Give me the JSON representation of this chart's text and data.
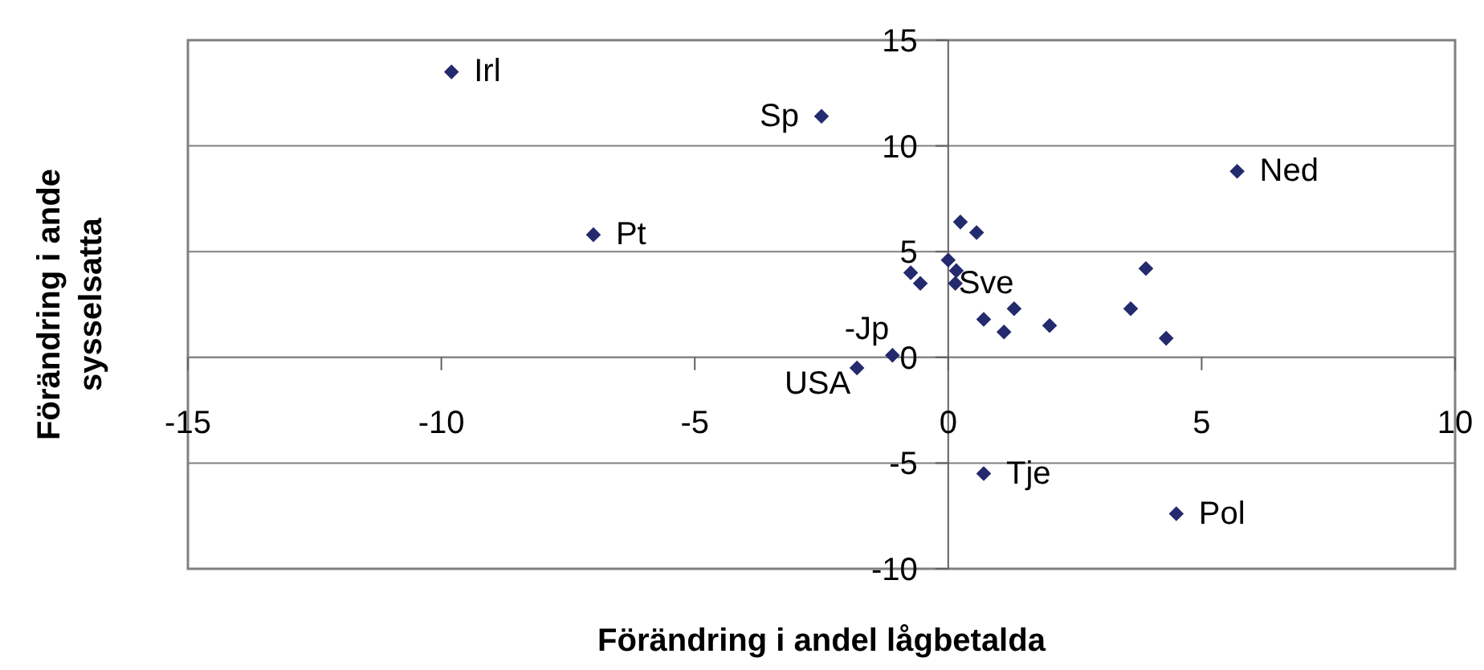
{
  "chart_data": {
    "type": "scatter",
    "xlabel": "Förändring i andel lågbetalda",
    "ylabel": "Förändring i ande sysselsatta",
    "xlim": [
      -15,
      10
    ],
    "ylim": [
      -10,
      15
    ],
    "xticks": [
      -15,
      -10,
      -5,
      0,
      5,
      10
    ],
    "yticks": [
      -10,
      -5,
      0,
      5,
      10,
      15
    ],
    "grid": "y",
    "marker": "diamond",
    "series": [
      {
        "color": "#232a6e",
        "x": [
          -9.8,
          -2.5,
          -7.0,
          5.7,
          0.24,
          0.56,
          0,
          0.16,
          0.14,
          -0.74,
          -0.55,
          3.9,
          0.7,
          1.3,
          1.1,
          2.0,
          3.6,
          4.3,
          -1.1,
          -1.8,
          0.7,
          4.5
        ],
        "values": [
          13.5,
          11.4,
          5.8,
          8.8,
          6.4,
          5.9,
          4.6,
          4.1,
          3.5,
          4.0,
          3.5,
          4.2,
          1.8,
          2.3,
          1.2,
          1.5,
          2.3,
          0.9,
          0.1,
          -0.5,
          -5.5,
          -7.4
        ]
      }
    ],
    "annotations": [
      {
        "text": "Irl",
        "x": -9.8,
        "y": 13.5
      },
      {
        "text": "Sp",
        "x": -2.5,
        "y": 11.4
      },
      {
        "text": "Pt",
        "x": -7.0,
        "y": 5.8
      },
      {
        "text": "Ned",
        "x": 5.7,
        "y": 8.8
      },
      {
        "text": "Sve",
        "x": 0.14,
        "y": 3.5
      },
      {
        "text": "-Jp",
        "x": -1.1,
        "y": 0.1
      },
      {
        "text": "USA",
        "x": -1.8,
        "y": -0.5
      },
      {
        "text": "Tje",
        "x": 0.7,
        "y": -5.5
      },
      {
        "text": "Pol",
        "x": 4.5,
        "y": -7.4
      }
    ]
  }
}
